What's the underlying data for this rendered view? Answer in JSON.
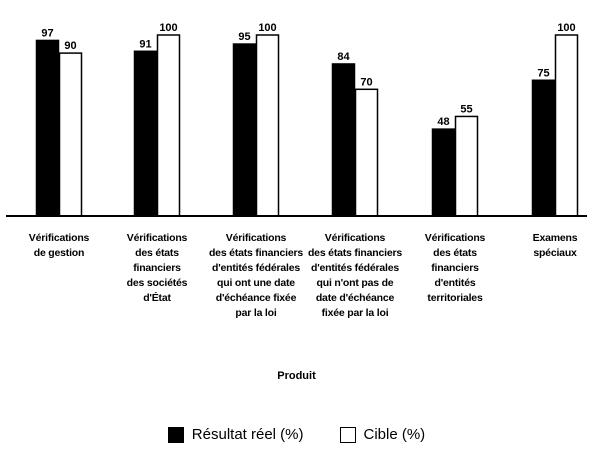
{
  "chart_data": {
    "type": "bar",
    "categories": [
      [
        "Vérifications",
        "de gestion"
      ],
      [
        "Vérifications",
        "des états",
        "financiers",
        "des sociétés",
        "d'État"
      ],
      [
        "Vérifications",
        "des états financiers",
        "d'entités fédérales",
        "qui ont une date",
        "d'échéance fixée",
        "par la loi"
      ],
      [
        "Vérifications",
        "des états financiers",
        "d'entités fédérales",
        "qui n'ont pas de",
        "date d'échéance",
        "fixée par la loi"
      ],
      [
        "Vérifications",
        "des états",
        "financiers",
        "d'entités",
        "territoriales"
      ],
      [
        "Examens",
        "spéciaux"
      ]
    ],
    "series": [
      {
        "name": "Résultat réel (%)",
        "values": [
          97,
          91,
          95,
          84,
          48,
          75
        ],
        "fill": "#000000"
      },
      {
        "name": "Cible (%)",
        "values": [
          90,
          100,
          100,
          70,
          55,
          100
        ],
        "fill": "#ffffff"
      }
    ],
    "xlabel": "Produit",
    "ylabel": "",
    "ylim": [
      0,
      100
    ],
    "grid": false,
    "legend_position": "bottom"
  }
}
